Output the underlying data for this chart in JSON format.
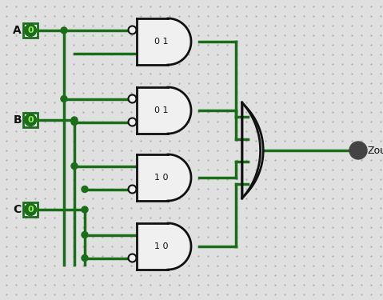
{
  "background_color": "#e0e0e0",
  "dot_grid_color": "#aaaaaa",
  "wire_color": "#1a6e1a",
  "wire_lw": 2.5,
  "gate_edge_color": "#111111",
  "gate_face_color": "#f0f0f0",
  "bubble_color": "#f0f0f0",
  "bubble_edge_color": "#111111",
  "input_box_edge_color": "#1a6e1a",
  "input_box_face_color": "#ffffff",
  "input_circle_color": "#1a6e1a",
  "input_text_color": "#99ee55",
  "output_dot_color": "#444444",
  "label_color": "#111111",
  "gate_labels": [
    "0 1",
    "0 1",
    "1 0",
    "1 0"
  ],
  "output_label": "Zout",
  "figsize": [
    4.79,
    3.75
  ],
  "dpi": 100
}
